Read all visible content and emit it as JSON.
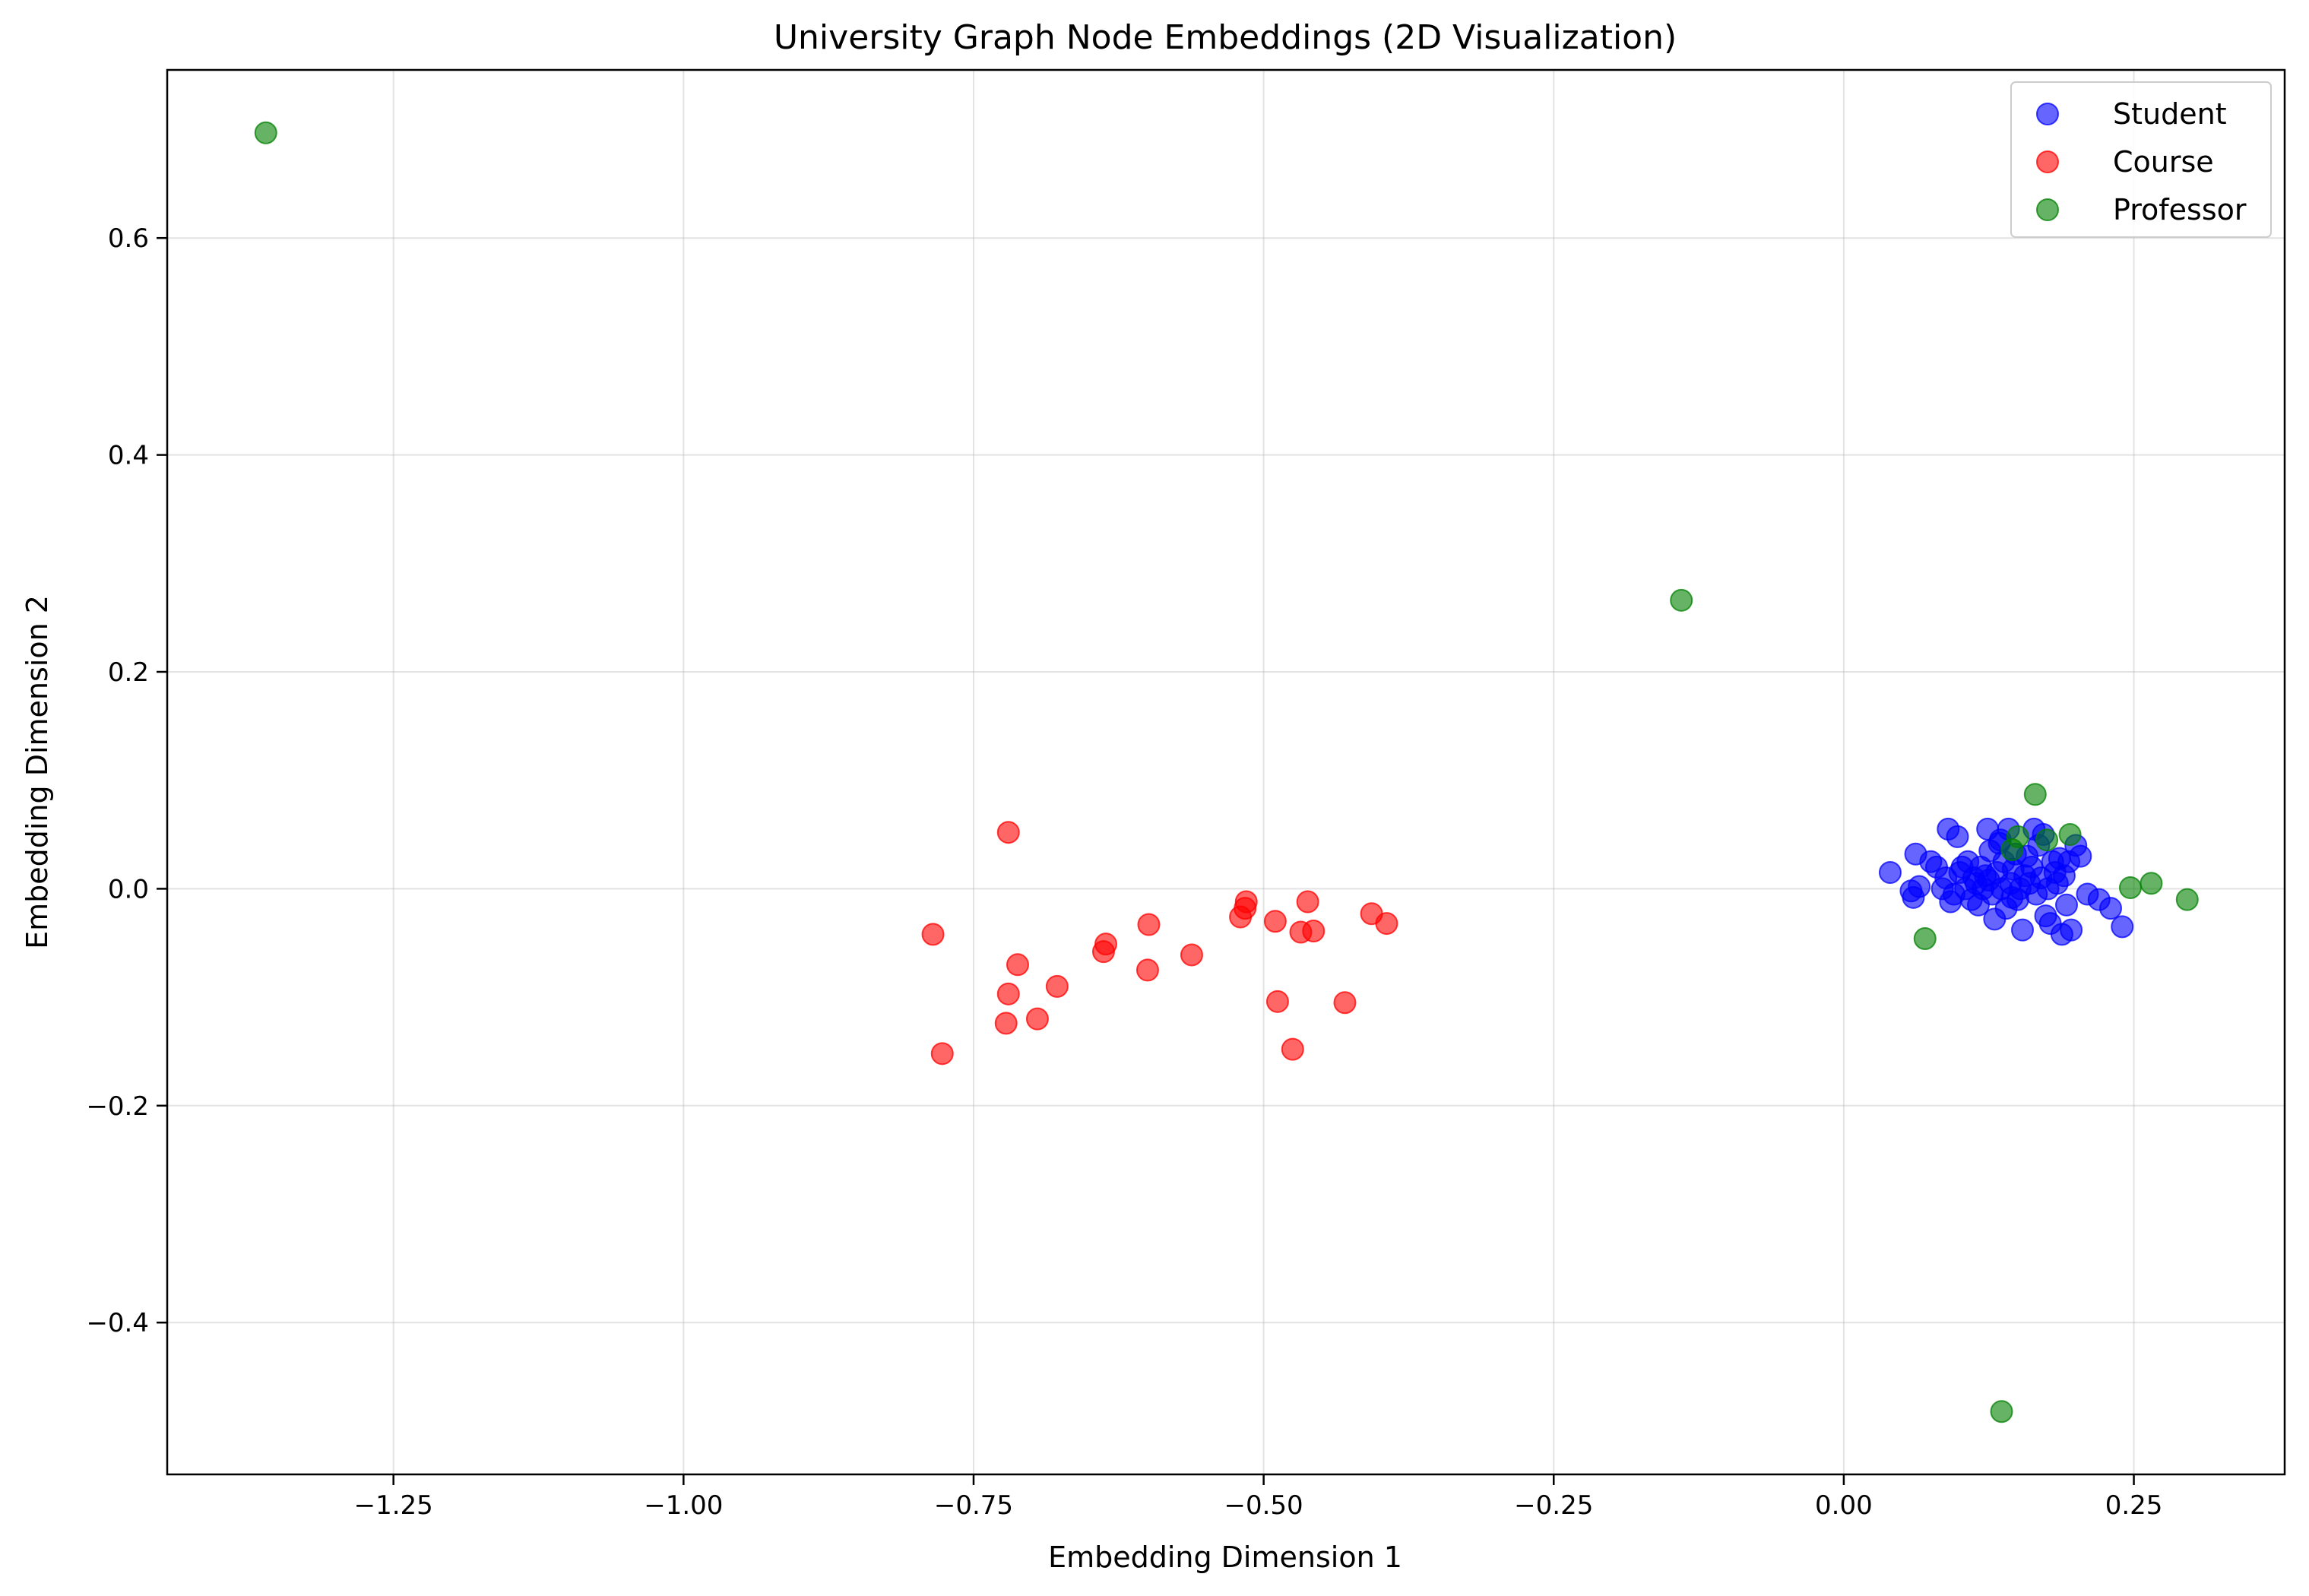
{
  "chart_data": {
    "type": "scatter",
    "title": "University Graph Node Embeddings (2D Visualization)",
    "xlabel": "Embedding Dimension 1",
    "ylabel": "Embedding Dimension 2",
    "xlim": [
      -1.445,
      0.38
    ],
    "ylim": [
      -0.54,
      0.755
    ],
    "xticks": [
      -1.25,
      -1.0,
      -0.75,
      -0.5,
      -0.25,
      0.0,
      0.25
    ],
    "xtick_labels": [
      "−1.25",
      "−1.00",
      "−0.75",
      "−0.50",
      "−0.25",
      "0.00",
      "0.25"
    ],
    "yticks": [
      -0.4,
      -0.2,
      0.0,
      0.2,
      0.4,
      0.6
    ],
    "ytick_labels": [
      "−0.4",
      "−0.2",
      "0.0",
      "0.2",
      "0.4",
      "0.6"
    ],
    "grid": true,
    "legend": "top-right",
    "series": [
      {
        "name": "Student",
        "color": "#0000ff",
        "points": [
          [
            0.04,
            0.015
          ],
          [
            0.058,
            -0.002
          ],
          [
            0.06,
            -0.008
          ],
          [
            0.062,
            0.032
          ],
          [
            0.065,
            0.002
          ],
          [
            0.075,
            0.025
          ],
          [
            0.08,
            0.02
          ],
          [
            0.085,
            0.0
          ],
          [
            0.088,
            0.01
          ],
          [
            0.09,
            0.055
          ],
          [
            0.092,
            -0.012
          ],
          [
            0.095,
            -0.005
          ],
          [
            0.098,
            0.048
          ],
          [
            0.1,
            0.015
          ],
          [
            0.102,
            0.02
          ],
          [
            0.105,
            0.0
          ],
          [
            0.107,
            0.025
          ],
          [
            0.11,
            -0.01
          ],
          [
            0.112,
            0.01
          ],
          [
            0.114,
            0.005
          ],
          [
            0.116,
            -0.015
          ],
          [
            0.118,
            0.02
          ],
          [
            0.12,
            0.0
          ],
          [
            0.122,
            0.012
          ],
          [
            0.124,
            0.055
          ],
          [
            0.126,
            0.035
          ],
          [
            0.128,
            -0.005
          ],
          [
            0.13,
            -0.028
          ],
          [
            0.132,
            0.015
          ],
          [
            0.134,
            0.042
          ],
          [
            0.136,
            0.0
          ],
          [
            0.138,
            0.025
          ],
          [
            0.14,
            -0.018
          ],
          [
            0.142,
            0.055
          ],
          [
            0.144,
            0.005
          ],
          [
            0.146,
            0.018
          ],
          [
            0.148,
            0.032
          ],
          [
            0.15,
            -0.01
          ],
          [
            0.152,
            0.0
          ],
          [
            0.154,
            -0.038
          ],
          [
            0.156,
            0.012
          ],
          [
            0.158,
            0.03
          ],
          [
            0.16,
            0.005
          ],
          [
            0.162,
            0.02
          ],
          [
            0.164,
            0.055
          ],
          [
            0.166,
            -0.005
          ],
          [
            0.168,
            0.04
          ],
          [
            0.17,
            0.01
          ],
          [
            0.172,
            0.05
          ],
          [
            0.174,
            -0.025
          ],
          [
            0.176,
            0.0
          ],
          [
            0.178,
            -0.032
          ],
          [
            0.18,
            0.025
          ],
          [
            0.182,
            0.015
          ],
          [
            0.184,
            0.005
          ],
          [
            0.186,
            0.028
          ],
          [
            0.188,
            -0.042
          ],
          [
            0.19,
            0.012
          ],
          [
            0.192,
            -0.015
          ],
          [
            0.194,
            0.025
          ],
          [
            0.196,
            -0.038
          ],
          [
            0.2,
            0.04
          ],
          [
            0.204,
            0.03
          ],
          [
            0.21,
            -0.005
          ],
          [
            0.22,
            -0.01
          ],
          [
            0.23,
            -0.018
          ],
          [
            0.24,
            -0.035
          ],
          [
            0.135,
            0.045
          ],
          [
            0.145,
            -0.008
          ],
          [
            0.125,
            0.008
          ]
        ]
      },
      {
        "name": "Course",
        "color": "#ff0000",
        "points": [
          [
            -0.785,
            -0.042
          ],
          [
            -0.777,
            -0.152
          ],
          [
            -0.72,
            0.052
          ],
          [
            -0.722,
            -0.124
          ],
          [
            -0.72,
            -0.097
          ],
          [
            -0.712,
            -0.07
          ],
          [
            -0.695,
            -0.12
          ],
          [
            -0.678,
            -0.09
          ],
          [
            -0.638,
            -0.058
          ],
          [
            -0.636,
            -0.051
          ],
          [
            -0.6,
            -0.075
          ],
          [
            -0.599,
            -0.033
          ],
          [
            -0.562,
            -0.061
          ],
          [
            -0.52,
            -0.026
          ],
          [
            -0.516,
            -0.018
          ],
          [
            -0.515,
            -0.012
          ],
          [
            -0.49,
            -0.03
          ],
          [
            -0.488,
            -0.104
          ],
          [
            -0.475,
            -0.148
          ],
          [
            -0.468,
            -0.04
          ],
          [
            -0.462,
            -0.012
          ],
          [
            -0.457,
            -0.039
          ],
          [
            -0.43,
            -0.105
          ],
          [
            -0.407,
            -0.023
          ],
          [
            -0.394,
            -0.032
          ]
        ]
      },
      {
        "name": "Professor",
        "color": "#008000",
        "points": [
          [
            -1.36,
            0.697
          ],
          [
            -0.14,
            0.266
          ],
          [
            0.07,
            -0.046
          ],
          [
            0.136,
            -0.482
          ],
          [
            0.145,
            0.036
          ],
          [
            0.15,
            0.048
          ],
          [
            0.165,
            0.087
          ],
          [
            0.175,
            0.045
          ],
          [
            0.195,
            0.05
          ],
          [
            0.247,
            0.001
          ],
          [
            0.265,
            0.005
          ],
          [
            0.296,
            -0.01
          ]
        ]
      }
    ]
  }
}
